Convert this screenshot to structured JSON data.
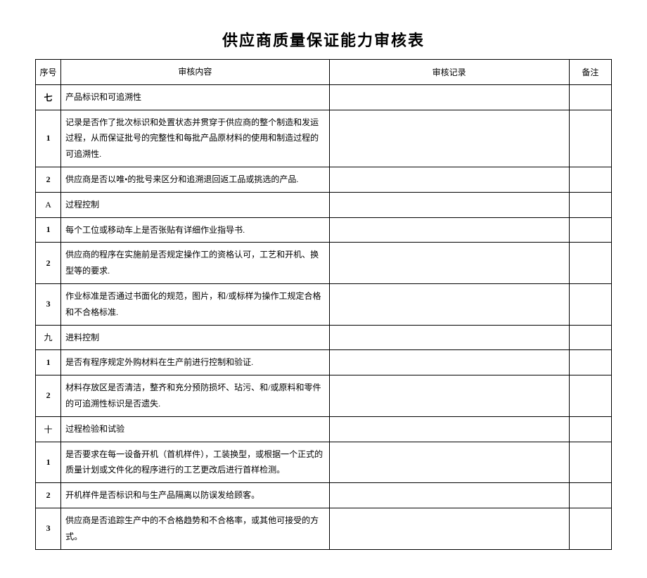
{
  "title": "供应商质量保证能力审核表",
  "headers": {
    "idx": "序号",
    "content": "审核内容",
    "record": "审核记录",
    "note": "备注"
  },
  "rows": [
    {
      "idx": "七",
      "content": "产品标识和可追溯性",
      "height": "short",
      "bold": true
    },
    {
      "idx": "1",
      "content": "记录是否作了批次标识和处置状态并贯穿于供应商的整个制造和发运过程，从而保证批号的完整性和每批产品原材料的使用和制造过程的可追溯性.",
      "height": "tall",
      "bold": true
    },
    {
      "idx": "2",
      "content": "供应商是否以唯•的批号来区分和追溯退回返工品或挑选的产品.",
      "height": "short",
      "bold": true
    },
    {
      "idx": "A",
      "content": "过程控制",
      "height": "short",
      "bold": false
    },
    {
      "idx": "1",
      "content": "每个工位或移动车上是否张贴有详细作业指导书.",
      "height": "short",
      "bold": true
    },
    {
      "idx": "2",
      "content": "供应商的程序在实施前是否规定操作工的资格认可，工艺和开机、换型等的要求.",
      "height": "short",
      "bold": true
    },
    {
      "idx": "3",
      "content": "作业标准是否通过书面化的规范，图片，和/或标样为操作工规定合格和不合格标准.",
      "height": "tall",
      "bold": true
    },
    {
      "idx": "九",
      "content": "进料控制",
      "height": "short",
      "bold": false
    },
    {
      "idx": "1",
      "content": "是否有程序规定外购材料在生产前进行控制和验证.",
      "height": "short",
      "bold": true
    },
    {
      "idx": "2",
      "content": "材料存放区是否清洁，整齐和充分预防损坏、玷污、和/或原料和零件的可追溯性标识是否遗失.",
      "height": "tall",
      "bold": true
    },
    {
      "idx": "十",
      "content": "过程检验和试验",
      "height": "short",
      "bold": false
    },
    {
      "idx": "1",
      "content": "是否要求在每一设备开机（首机样件），工装换型，或根据一个正式的质量计划或文件化的程序进行的工艺更改后进行首样检测。",
      "height": "tall",
      "bold": true
    },
    {
      "idx": "2",
      "content": "开机样件是否标识和与生产品隔离以防误发给顾客。",
      "height": "short",
      "bold": true
    },
    {
      "idx": "3",
      "content": "供应商是否追踪生产中的不合格趋势和不合格率，或其他可接受的方式。",
      "height": "short",
      "bold": true
    }
  ]
}
